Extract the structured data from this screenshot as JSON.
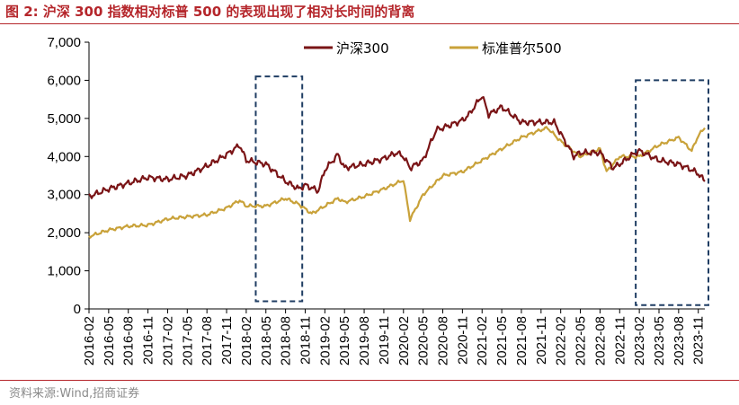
{
  "header": {
    "title": "图 2:  沪深 300 指数相对标普 500 的表现出现了相对长时间的背离"
  },
  "footer": {
    "source": "资料来源:Wind,招商证券"
  },
  "colors": {
    "csi300": "#7a1416",
    "sp500": "#c9a23a",
    "box": "#1f3d63",
    "accent": "#b5262b"
  },
  "chart_data": {
    "type": "line",
    "title": "",
    "xlabel": "",
    "ylabel": "",
    "ylim": [
      0,
      7000
    ],
    "yticks": [
      "0",
      "1,000",
      "2,000",
      "3,000",
      "4,000",
      "5,000",
      "6,000",
      "7,000"
    ],
    "xticks": [
      "2016-02",
      "2016-05",
      "2016-08",
      "2016-11",
      "2017-02",
      "2017-05",
      "2017-08",
      "2017-11",
      "2018-02",
      "2018-05",
      "2018-08",
      "2018-11",
      "2019-02",
      "2019-05",
      "2019-08",
      "2019-11",
      "2020-02",
      "2020-05",
      "2020-08",
      "2020-11",
      "2021-02",
      "2021-05",
      "2021-08",
      "2021-11",
      "2022-02",
      "2022-05",
      "2022-08",
      "2022-11",
      "2023-02",
      "2023-05",
      "2023-08",
      "2023-11"
    ],
    "grid": false,
    "legend_position": "top-center",
    "highlight_ranges": [
      [
        "2018-04",
        "2018-10"
      ],
      [
        "2023-02",
        "2023-12"
      ]
    ],
    "series": [
      {
        "name": "沪深300",
        "x": [
          "2016-02",
          "2016-05",
          "2016-08",
          "2016-11",
          "2017-02",
          "2017-05",
          "2017-08",
          "2017-11",
          "2018-01",
          "2018-02",
          "2018-05",
          "2018-08",
          "2018-10",
          "2018-11",
          "2019-01",
          "2019-02",
          "2019-04",
          "2019-05",
          "2019-08",
          "2019-11",
          "2020-01",
          "2020-02",
          "2020-03",
          "2020-05",
          "2020-07",
          "2020-08",
          "2020-11",
          "2020-12",
          "2021-02",
          "2021-03",
          "2021-05",
          "2021-08",
          "2021-11",
          "2022-01",
          "2022-02",
          "2022-04",
          "2022-05",
          "2022-08",
          "2022-10",
          "2022-11",
          "2023-01",
          "2023-02",
          "2023-05",
          "2023-08",
          "2023-10",
          "2023-11",
          "2023-12"
        ],
        "values": [
          2950,
          3150,
          3300,
          3450,
          3400,
          3500,
          3750,
          4050,
          4300,
          3900,
          3800,
          3350,
          3150,
          3250,
          3100,
          3650,
          4050,
          3700,
          3800,
          3950,
          4100,
          4000,
          3700,
          3900,
          4700,
          4750,
          4950,
          5100,
          5600,
          5100,
          5300,
          4900,
          4900,
          4900,
          4600,
          4000,
          4100,
          4100,
          3700,
          3800,
          4050,
          4150,
          3900,
          3800,
          3650,
          3550,
          3350
        ]
      },
      {
        "name": "标准普尔500",
        "x": [
          "2016-02",
          "2016-05",
          "2016-08",
          "2016-11",
          "2017-02",
          "2017-05",
          "2017-08",
          "2017-11",
          "2018-01",
          "2018-02",
          "2018-05",
          "2018-08",
          "2018-10",
          "2018-12",
          "2019-04",
          "2019-05",
          "2019-08",
          "2019-11",
          "2020-02",
          "2020-03",
          "2020-05",
          "2020-08",
          "2020-11",
          "2021-02",
          "2021-05",
          "2021-08",
          "2021-11",
          "2021-12",
          "2022-02",
          "2022-05",
          "2022-08",
          "2022-09",
          "2022-11",
          "2023-02",
          "2023-05",
          "2023-08",
          "2023-10",
          "2023-11",
          "2023-12"
        ],
        "values": [
          1900,
          2070,
          2170,
          2200,
          2360,
          2420,
          2470,
          2650,
          2850,
          2700,
          2700,
          2900,
          2750,
          2500,
          2900,
          2800,
          2950,
          3150,
          3380,
          2350,
          3000,
          3500,
          3600,
          3900,
          4200,
          4500,
          4700,
          4750,
          4400,
          4000,
          4200,
          3600,
          4000,
          4000,
          4300,
          4500,
          4150,
          4550,
          4750
        ]
      }
    ]
  }
}
